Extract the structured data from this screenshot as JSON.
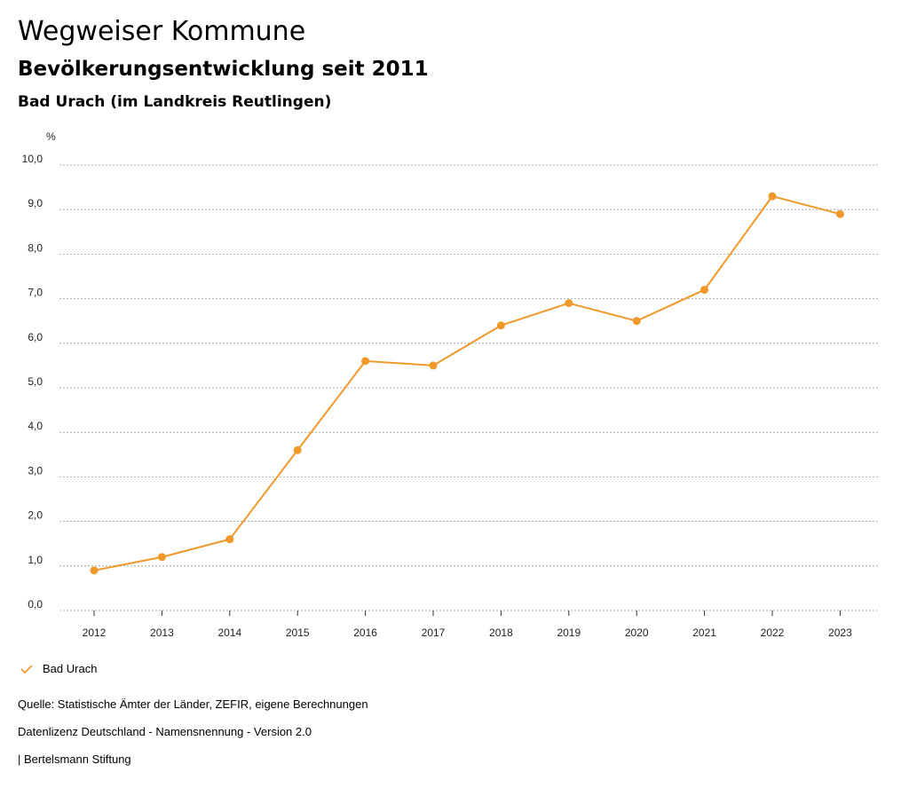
{
  "header": {
    "title": "Wegweiser Kommune",
    "subtitle": "Bevölkerungsentwicklung seit 2011",
    "region": "Bad Urach (im Landkreis Reutlingen)"
  },
  "colors": {
    "series": "#f0982a",
    "grid": "#999999",
    "axis": "#333333"
  },
  "chart_data": {
    "type": "line",
    "title": "Bevölkerungsentwicklung seit 2011",
    "ylabel": "%",
    "xlabel": "",
    "ylim": [
      0,
      10
    ],
    "yticks": [
      "0,0",
      "1,0",
      "2,0",
      "3,0",
      "4,0",
      "5,0",
      "6,0",
      "7,0",
      "8,0",
      "9,0",
      "10,0"
    ],
    "categories": [
      "2012",
      "2013",
      "2014",
      "2015",
      "2016",
      "2017",
      "2018",
      "2019",
      "2020",
      "2021",
      "2022",
      "2023"
    ],
    "series": [
      {
        "name": "Bad Urach",
        "values": [
          0.9,
          1.2,
          1.6,
          3.6,
          5.6,
          5.5,
          6.4,
          6.9,
          6.5,
          7.2,
          9.3,
          8.9
        ]
      }
    ],
    "grid": true,
    "legend": "bottom-left"
  },
  "legend": {
    "label": "Bad Urach",
    "icon": "check-icon"
  },
  "footer": {
    "source": "Quelle: Statistische Ämter der Länder, ZEFIR, eigene Berechnungen",
    "license": "Datenlizenz Deutschland - Namensnennung - Version 2.0",
    "brand": "| Bertelsmann Stiftung"
  }
}
